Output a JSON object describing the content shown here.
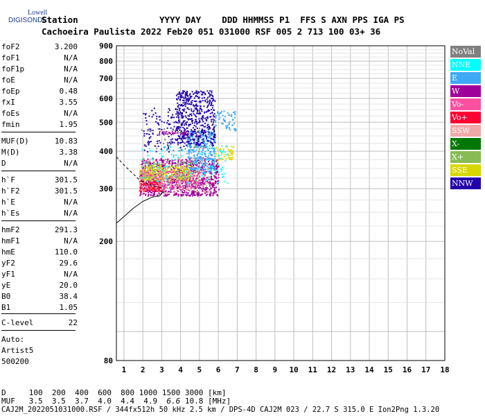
{
  "logo": {
    "top": "Lowell",
    "main": "DIGISONDE"
  },
  "header": {
    "line1_left": "Station",
    "line1_right": "YYYY DAY    DDD HHMMSS P1  FFS S AXN PPS IGA PS",
    "line2": "Cachoeira Paulista 2022 Feb20 051 031000 RSF 005 2 713 100 03+ 36"
  },
  "params": [
    {
      "label": "foF2",
      "value": "3.200"
    },
    {
      "label": "foF1",
      "value": "N/A"
    },
    {
      "label": "foF1p",
      "value": "N/A"
    },
    {
      "label": "foE",
      "value": "N/A"
    },
    {
      "label": "foEp",
      "value": "0.48"
    },
    {
      "label": "fxI",
      "value": "3.55"
    },
    {
      "label": "foEs",
      "value": "N/A"
    },
    {
      "label": "fmin",
      "value": "1.95"
    },
    {
      "label": "MUF(D)",
      "value": "10.83"
    },
    {
      "label": "M(D)",
      "value": "3.38"
    },
    {
      "label": "D",
      "value": "N/A"
    },
    {
      "label": "h`F",
      "value": "301.5"
    },
    {
      "label": "h`F2",
      "value": "301.5"
    },
    {
      "label": "h`E",
      "value": "N/A"
    },
    {
      "label": "h`Es",
      "value": "N/A"
    },
    {
      "label": "hmF2",
      "value": "291.3"
    },
    {
      "label": "hmF1",
      "value": "N/A"
    },
    {
      "label": "hmE",
      "value": "110.0"
    },
    {
      "label": "yF2",
      "value": "29.6"
    },
    {
      "label": "yF1",
      "value": "N/A"
    },
    {
      "label": "yE",
      "value": "20.0"
    },
    {
      "label": "B0",
      "value": "38.4"
    },
    {
      "label": "B1",
      "value": "1.05"
    },
    {
      "label": "C-level",
      "value": "22"
    }
  ],
  "auto": {
    "line1": "Auto:",
    "line2": "Artist5",
    "line3": "500200"
  },
  "legend": [
    {
      "label": "NoVal",
      "color": "#808080"
    },
    {
      "label": "NNE",
      "color": "#00ffff"
    },
    {
      "label": "E",
      "color": "#3fa9f5"
    },
    {
      "label": "W",
      "color": "#a0009a"
    },
    {
      "label": "Vo-",
      "color": "#ff4fa0"
    },
    {
      "label": "Vo+",
      "color": "#ff0033"
    },
    {
      "label": "SSW",
      "color": "#f0a8a8"
    },
    {
      "label": "X-",
      "color": "#007800"
    },
    {
      "label": "X+",
      "color": "#88bb55"
    },
    {
      "label": "SSE",
      "color": "#d8d800"
    },
    {
      "label": "NNW",
      "color": "#2200aa"
    }
  ],
  "footer": {
    "d_line": "D     100  200  400  600  800 1000 1500 3000 [km]",
    "muf_prefix": "MUF   3.5  3.5  3.7  4.0  4.4  4.9 ",
    "muf_italic": " 6.6",
    "muf_suffix": " 10.8 [MHz]",
    "bottom": "CAJ2M_2022051031000.RSF / 344fx512h 50 kHz 2.5 km / DPS-4D CAJ2M 023 / 22.7 S 315.0 E Ion2Png 1.3.20"
  },
  "chart_data": {
    "type": "scatter",
    "title": "",
    "xlabel": "",
    "ylabel": "",
    "xlim": [
      0.6,
      18
    ],
    "ylim": [
      80,
      900
    ],
    "y_scale": "log",
    "x_ticks": [
      1,
      2,
      3,
      4,
      5,
      6,
      7,
      8,
      9,
      10,
      11,
      12,
      13,
      14,
      15,
      16,
      17,
      18
    ],
    "y_ticks": [
      80,
      200,
      300,
      400,
      500,
      600,
      700,
      800,
      900
    ],
    "grid": true,
    "legend_position": "right",
    "trace_points": [
      {
        "x": 0.6,
        "y": 383
      },
      {
        "x": 1.0,
        "y": 360
      },
      {
        "x": 1.4,
        "y": 340
      },
      {
        "x": 1.8,
        "y": 322
      },
      {
        "x": 2.2,
        "y": 312
      },
      {
        "x": 2.6,
        "y": 306
      },
      {
        "x": 3.0,
        "y": 302
      }
    ],
    "profile_points": [
      {
        "x": 0.6,
        "y": 230
      },
      {
        "x": 1.0,
        "y": 242
      },
      {
        "x": 1.5,
        "y": 258
      },
      {
        "x": 2.0,
        "y": 272
      },
      {
        "x": 2.5,
        "y": 281
      },
      {
        "x": 2.9,
        "y": 284
      },
      {
        "x": 3.1,
        "y": 295
      }
    ],
    "clusters": [
      {
        "series": "W",
        "x": [
          1.8,
          6.0
        ],
        "y": [
          285,
          380
        ],
        "count": 900
      },
      {
        "series": "W",
        "x": [
          2.8,
          5.5
        ],
        "y": [
          455,
          470
        ],
        "count": 60
      },
      {
        "series": "E",
        "x": [
          4.3,
          5.8
        ],
        "y": [
          340,
          470
        ],
        "count": 350
      },
      {
        "series": "E",
        "x": [
          5.8,
          6.9
        ],
        "y": [
          470,
          550
        ],
        "count": 60
      },
      {
        "series": "NNW",
        "x": [
          3.7,
          5.8
        ],
        "y": [
          420,
          640
        ],
        "count": 500
      },
      {
        "series": "NNW",
        "x": [
          2.0,
          4.2
        ],
        "y": [
          400,
          560
        ],
        "count": 120
      },
      {
        "series": "SSE",
        "x": [
          1.8,
          4.5
        ],
        "y": [
          320,
          360
        ],
        "count": 300
      },
      {
        "series": "SSE",
        "x": [
          5.8,
          6.8
        ],
        "y": [
          375,
          420
        ],
        "count": 50
      },
      {
        "series": "Vo-",
        "x": [
          1.8,
          5.0
        ],
        "y": [
          300,
          345
        ],
        "count": 220
      },
      {
        "series": "Vo+",
        "x": [
          1.8,
          3.0
        ],
        "y": [
          295,
          320
        ],
        "count": 120
      },
      {
        "series": "SSW",
        "x": [
          1.8,
          5.5
        ],
        "y": [
          290,
          380
        ],
        "count": 180
      },
      {
        "series": "NNE",
        "x": [
          1.8,
          6.5
        ],
        "y": [
          310,
          420
        ],
        "count": 120
      },
      {
        "series": "X+",
        "x": [
          2.0,
          5.0
        ],
        "y": [
          320,
          370
        ],
        "count": 80
      },
      {
        "series": "NoVal",
        "x": [
          1.8,
          5.5
        ],
        "y": [
          300,
          480
        ],
        "count": 60
      }
    ]
  }
}
